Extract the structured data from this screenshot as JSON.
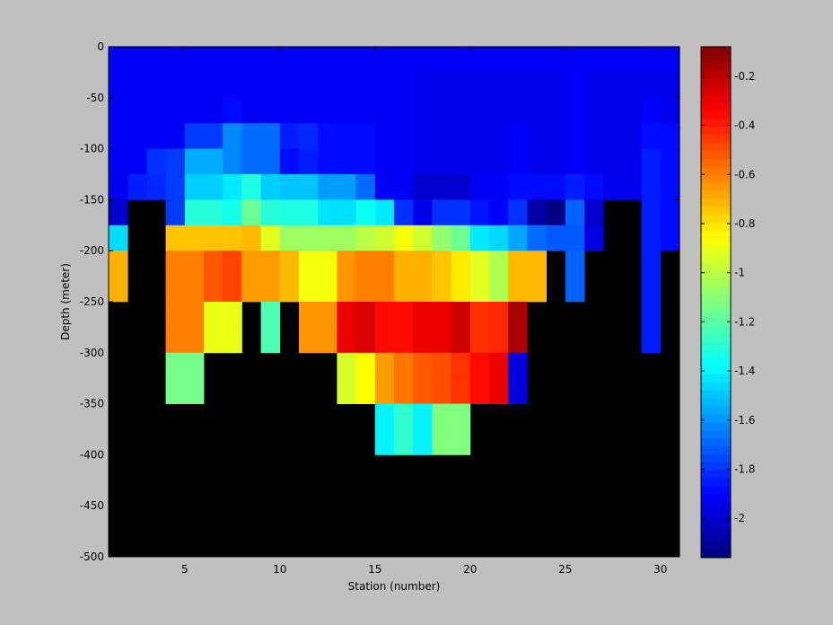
{
  "chart_data": {
    "type": "heatmap",
    "title": "",
    "xlabel": "Station (number)",
    "ylabel": "Depth (meter)",
    "xlim": [
      1,
      31
    ],
    "ylim": [
      -500,
      0
    ],
    "xticks": [
      5,
      10,
      15,
      20,
      25,
      30
    ],
    "yticks": [
      0,
      -50,
      -100,
      -150,
      -200,
      -250,
      -300,
      -350,
      -400,
      -450,
      -500
    ],
    "colorbar": {
      "range": [
        -2.16,
        -0.08
      ],
      "ticks": [
        -0.2,
        -0.4,
        -0.6,
        -0.8,
        -1,
        -1.2,
        -1.4,
        -1.6,
        -1.8,
        -2
      ]
    },
    "background_color": "#000000",
    "stations": [
      1,
      2,
      3,
      4,
      5,
      6,
      7,
      8,
      9,
      10,
      11,
      12,
      13,
      14,
      15,
      16,
      17,
      18,
      19,
      20,
      21,
      22,
      23,
      24,
      25,
      26,
      27,
      28,
      29,
      30
    ],
    "depths": [
      0,
      -25,
      -50,
      -75,
      -100,
      -125,
      -150,
      -175,
      -200,
      -225,
      -250,
      -275,
      -300,
      -325,
      -350,
      -375,
      -400
    ],
    "values_note": "rows = depths, cols = stations 1-30; null = no data",
    "values": [
      [
        -1.92,
        -1.92,
        -1.92,
        -1.92,
        -1.92,
        -1.92,
        -1.92,
        -1.92,
        -1.92,
        -1.92,
        -1.92,
        -1.92,
        -1.92,
        -1.92,
        -1.92,
        -1.92,
        -1.92,
        -1.92,
        -1.92,
        -1.92,
        -1.92,
        -1.92,
        -1.92,
        -1.92,
        -1.92,
        -1.92,
        -1.92,
        -1.92,
        -1.92,
        -1.92
      ],
      [
        -1.92,
        -1.92,
        -1.92,
        -1.92,
        -1.92,
        -1.92,
        -1.92,
        -1.92,
        -1.92,
        -1.92,
        -1.92,
        -1.92,
        -1.92,
        -1.92,
        -1.92,
        -1.92,
        -1.94,
        -1.94,
        -1.94,
        -1.94,
        -1.94,
        -1.94,
        -1.94,
        -1.94,
        -1.9,
        -1.94,
        -1.94,
        -1.94,
        -1.94,
        -1.94
      ],
      [
        -1.92,
        -1.92,
        -1.92,
        -1.92,
        -1.92,
        -1.92,
        -1.88,
        -1.92,
        -1.92,
        -1.92,
        -1.92,
        -1.92,
        -1.92,
        -1.92,
        -1.92,
        -1.92,
        -1.94,
        -1.94,
        -1.94,
        -1.94,
        -1.94,
        -1.94,
        -1.94,
        -1.94,
        -1.9,
        -1.94,
        -1.94,
        -1.94,
        -1.9,
        -1.94
      ],
      [
        -1.92,
        -1.92,
        -1.92,
        -1.92,
        -1.78,
        -1.78,
        -1.62,
        -1.68,
        -1.68,
        -1.84,
        -1.82,
        -1.88,
        -1.88,
        -1.88,
        -1.92,
        -1.92,
        -1.94,
        -1.94,
        -1.94,
        -1.94,
        -1.94,
        -1.9,
        -1.94,
        -1.94,
        -1.9,
        -1.94,
        -1.94,
        -1.94,
        -1.88,
        -1.88
      ],
      [
        -1.92,
        -1.92,
        -1.8,
        -1.78,
        -1.55,
        -1.55,
        -1.62,
        -1.68,
        -1.68,
        -1.88,
        -1.84,
        -1.88,
        -1.88,
        -1.88,
        -1.92,
        -1.92,
        -1.94,
        -1.94,
        -1.94,
        -1.94,
        -1.94,
        -1.9,
        -1.94,
        -1.94,
        -1.9,
        -1.94,
        -1.94,
        -1.94,
        -1.84,
        -1.88
      ],
      [
        -1.92,
        -1.84,
        -1.82,
        -1.78,
        -1.48,
        -1.48,
        -1.42,
        -1.32,
        -1.48,
        -1.5,
        -1.5,
        -1.58,
        -1.58,
        -1.68,
        -1.92,
        -1.92,
        -2.0,
        -2.0,
        -2.0,
        -1.92,
        -1.92,
        -1.88,
        -1.88,
        -1.88,
        -1.84,
        -1.88,
        -1.94,
        -1.94,
        -1.84,
        -1.88
      ],
      [
        -2.0,
        null,
        null,
        -1.78,
        -1.3,
        -1.3,
        -1.34,
        -1.16,
        -1.3,
        -1.32,
        -1.32,
        -1.44,
        -1.44,
        -1.36,
        -1.42,
        -1.8,
        -1.94,
        -1.8,
        -1.8,
        -1.86,
        -1.9,
        -1.8,
        -2.08,
        -2.16,
        -1.7,
        -2.0,
        null,
        null,
        -1.84,
        -1.88
      ],
      [
        -1.45,
        null,
        null,
        -0.74,
        -0.74,
        -0.74,
        -0.74,
        -0.72,
        -0.92,
        -1.06,
        -1.06,
        -1.06,
        -1.06,
        -1.0,
        -0.96,
        -0.88,
        -0.96,
        -1.08,
        -1.16,
        -1.42,
        -1.46,
        -1.56,
        -1.68,
        -1.72,
        -1.72,
        -1.96,
        null,
        null,
        -1.84,
        -1.88
      ],
      [
        -0.7,
        null,
        null,
        -0.6,
        -0.6,
        -0.52,
        -0.48,
        -0.66,
        -0.66,
        -0.72,
        -0.88,
        -0.88,
        -0.64,
        -0.6,
        -0.6,
        -0.7,
        -0.7,
        -0.74,
        -0.82,
        -0.92,
        -1.02,
        -0.72,
        -0.72,
        null,
        -1.7,
        null,
        null,
        null,
        -1.84,
        null
      ],
      [
        -0.7,
        null,
        null,
        -0.6,
        -0.6,
        -0.52,
        -0.48,
        -0.66,
        -0.66,
        -0.72,
        -0.88,
        -0.88,
        -0.64,
        -0.6,
        -0.6,
        -0.7,
        -0.7,
        -0.74,
        -0.82,
        -0.92,
        -1.02,
        -0.72,
        -0.72,
        null,
        -1.7,
        null,
        null,
        null,
        -1.84,
        null
      ],
      [
        null,
        null,
        null,
        -0.6,
        -0.6,
        -0.9,
        -0.9,
        null,
        -1.22,
        null,
        -0.64,
        -0.64,
        -0.3,
        -0.26,
        -0.36,
        -0.36,
        -0.3,
        -0.3,
        -0.24,
        -0.44,
        -0.42,
        -0.16,
        null,
        null,
        null,
        null,
        null,
        null,
        -1.84,
        null
      ],
      [
        null,
        null,
        null,
        -0.6,
        -0.6,
        -0.9,
        -0.9,
        null,
        -1.22,
        null,
        -0.64,
        -0.64,
        -0.3,
        -0.26,
        -0.36,
        -0.36,
        -0.3,
        -0.3,
        -0.24,
        -0.44,
        -0.42,
        -0.16,
        null,
        null,
        null,
        null,
        null,
        null,
        -1.84,
        null
      ],
      [
        null,
        null,
        null,
        -1.14,
        -1.14,
        null,
        null,
        null,
        null,
        null,
        null,
        null,
        -0.94,
        -0.86,
        -0.66,
        -0.58,
        -0.52,
        -0.5,
        -0.44,
        -0.36,
        -0.3,
        -1.98,
        null,
        null,
        null,
        null,
        null,
        null,
        null,
        null
      ],
      [
        null,
        null,
        null,
        -1.14,
        -1.14,
        null,
        null,
        null,
        null,
        null,
        null,
        null,
        -0.94,
        -0.86,
        -0.66,
        -0.58,
        -0.52,
        -0.5,
        -0.44,
        -0.36,
        -0.3,
        -1.98,
        null,
        null,
        null,
        null,
        null,
        null,
        null,
        null
      ],
      [
        null,
        null,
        null,
        null,
        null,
        null,
        null,
        null,
        null,
        null,
        null,
        null,
        null,
        null,
        -1.4,
        -1.28,
        -1.4,
        -1.12,
        -1.12,
        null,
        null,
        null,
        null,
        null,
        null,
        null,
        null,
        null,
        null,
        null
      ],
      [
        null,
        null,
        null,
        null,
        null,
        null,
        null,
        null,
        null,
        null,
        null,
        null,
        null,
        null,
        -1.4,
        -1.28,
        -1.4,
        -1.12,
        -1.12,
        null,
        null,
        null,
        null,
        null,
        null,
        null,
        null,
        null,
        null,
        null
      ],
      [
        null,
        null,
        null,
        null,
        null,
        null,
        null,
        null,
        null,
        null,
        null,
        null,
        null,
        null,
        null,
        null,
        null,
        null,
        null,
        null,
        null,
        null,
        null,
        null,
        null,
        null,
        null,
        null,
        null,
        null
      ]
    ]
  }
}
